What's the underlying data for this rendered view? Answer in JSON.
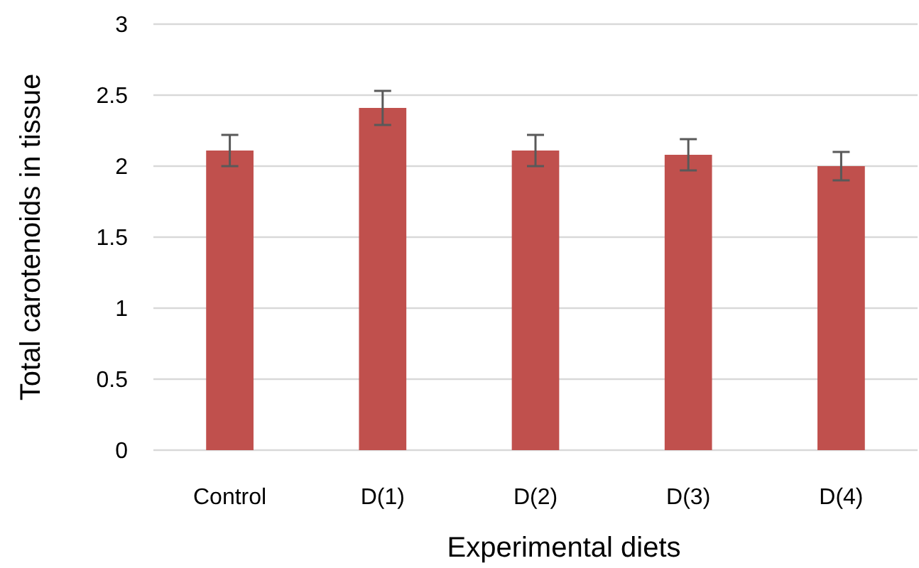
{
  "chart_data": {
    "type": "bar",
    "xlabel": "Experimental diets",
    "ylabel": "Total carotenoids in tissue",
    "categories": [
      "Control",
      "D(1)",
      "D(2)",
      "D(3)",
      "D(4)"
    ],
    "values": [
      2.11,
      2.41,
      2.11,
      2.08,
      2.0
    ],
    "errors": [
      0.11,
      0.12,
      0.11,
      0.11,
      0.1
    ],
    "color": "#c0504d",
    "ylim": [
      0,
      3
    ],
    "yticks": [
      0,
      0.5,
      1,
      1.5,
      2,
      2.5,
      3
    ],
    "grid": "y"
  }
}
